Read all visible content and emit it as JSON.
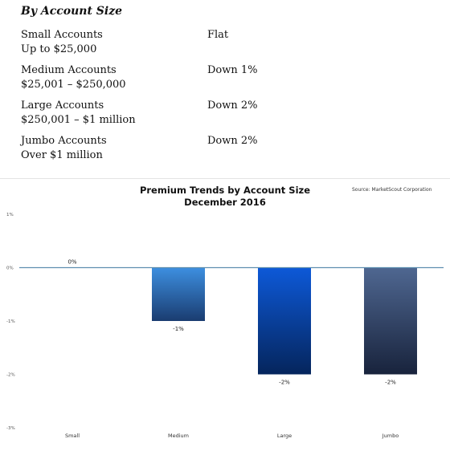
{
  "section": {
    "heading": "By Account Size",
    "rows": [
      {
        "label": "Small Accounts",
        "range": "Up to $25,000",
        "trend": "Flat"
      },
      {
        "label": "Medium Accounts",
        "range": "$25,001 – $250,000",
        "trend": "Down 1%"
      },
      {
        "label": "Large Accounts",
        "range": "$250,001 – $1 million",
        "trend": "Down 2%"
      },
      {
        "label": "Jumbo Accounts",
        "range": "Over $1 million",
        "trend": "Down 2%"
      }
    ]
  },
  "chart_data": {
    "type": "bar",
    "title": "Premium Trends by Account Size",
    "subtitle": "December 2016",
    "source": "Source: MarketScout Corporation",
    "categories": [
      "Small",
      "Medium",
      "Large",
      "Jumbo"
    ],
    "values": [
      0,
      -1,
      -2,
      -2
    ],
    "data_labels": [
      "0%",
      "-1%",
      "-2%",
      "-2%"
    ],
    "ylim": [
      -3,
      1
    ],
    "y_ticks": [
      1,
      0,
      -1,
      -2,
      -3
    ],
    "y_tick_labels": [
      "1%",
      "0%",
      "-1%",
      "-2%",
      "-3%"
    ],
    "grid": false,
    "colors": {
      "zero_line": "#5f8fb0",
      "medium": [
        "#3d8fe0",
        "#1a3c70"
      ],
      "large": [
        "#0d59d8",
        "#05255c"
      ],
      "jumbo": [
        "#4f6791",
        "#18233c"
      ]
    }
  }
}
